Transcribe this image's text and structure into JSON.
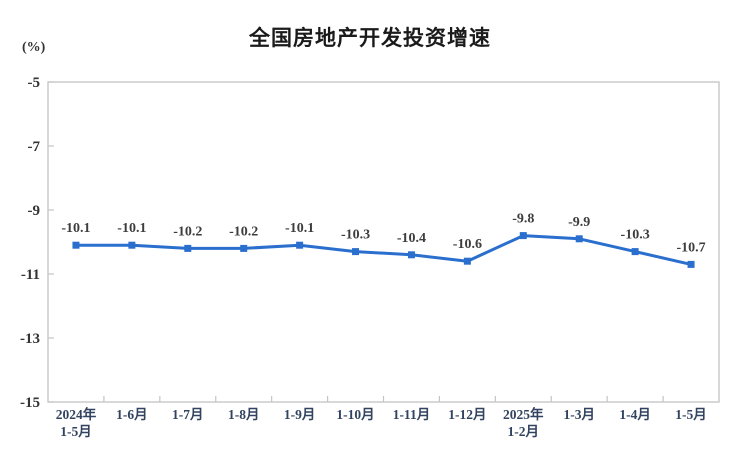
{
  "page": {
    "title": "全国房地产开发投资增速",
    "unit_label": "(%)"
  },
  "chart_data": {
    "type": "line",
    "title": "全国房地产开发投资增速",
    "ylabel": "(%)",
    "xlabel": "",
    "categories": [
      "2024年\n1-5月",
      "1-6月",
      "1-7月",
      "1-8月",
      "1-9月",
      "1-10月",
      "1-11月",
      "1-12月",
      "2025年\n1-2月",
      "1-3月",
      "1-4月",
      "1-5月"
    ],
    "series": [
      {
        "name": "全国房地产开发投资增速",
        "values": [
          -10.1,
          -10.1,
          -10.2,
          -10.2,
          -10.1,
          -10.3,
          -10.4,
          -10.6,
          -9.8,
          -9.9,
          -10.3,
          -10.7
        ]
      }
    ],
    "data_labels": [
      "-10.1",
      "-10.1",
      "-10.2",
      "-10.2",
      "-10.1",
      "-10.3",
      "-10.4",
      "-10.6",
      "-9.8",
      "-9.9",
      "-10.3",
      "-10.7"
    ],
    "ylim": [
      -15,
      -5
    ],
    "yticks": [
      -5,
      -7,
      -9,
      -11,
      -13,
      -15
    ],
    "grid": false,
    "legend": "none",
    "marker": "square",
    "colors": {
      "line": "#2a6fce",
      "marker": "#2a6fce",
      "data_label": "#3d3d3d",
      "axis": "#c4c4c4",
      "y_tick_label": "#333333",
      "x_tick_label": "#31435f",
      "title": "#1a1a1a"
    }
  }
}
